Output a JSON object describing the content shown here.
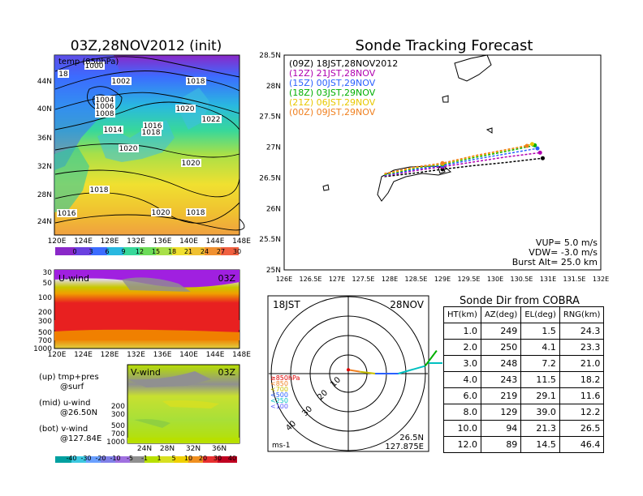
{
  "map_panel": {
    "title": "03Z,28NOV2012 (init)",
    "subtitle": "temp (850hPa)",
    "lat_labels": [
      "44N",
      "40N",
      "36N",
      "32N",
      "28N",
      "24N"
    ],
    "lon_labels": [
      "120E",
      "124E",
      "128E",
      "132E",
      "136E",
      "140E",
      "144E",
      "148E"
    ],
    "isobar_labels": [
      {
        "text": "1000"
      },
      {
        "text": "18"
      },
      {
        "text": "1002"
      },
      {
        "text": "1004"
      },
      {
        "text": "1006"
      },
      {
        "text": "1008"
      },
      {
        "text": "1018"
      },
      {
        "text": "1020"
      },
      {
        "text": "1022"
      },
      {
        "text": "1016"
      },
      {
        "text": "1014"
      },
      {
        "text": "1018"
      },
      {
        "text": "1020"
      },
      {
        "text": "1020"
      },
      {
        "text": "1018"
      },
      {
        "text": "1016"
      },
      {
        "text": "1020"
      },
      {
        "text": "1018"
      }
    ],
    "colorbar": [
      "0",
      "3",
      "6",
      "9",
      "12",
      "15",
      "18",
      "21",
      "24",
      "27",
      "30"
    ]
  },
  "u_panel": {
    "title": "U-wind",
    "time": "03Z",
    "y_labels": [
      "30",
      "50",
      "100",
      "200",
      "300",
      "500",
      "700",
      "1000"
    ],
    "x_labels": [
      "120E",
      "124E",
      "128E",
      "132E",
      "136E",
      "140E",
      "144E",
      "148E"
    ]
  },
  "v_panel": {
    "title": "V-wind",
    "time": "03Z",
    "y_labels": [
      "200",
      "300",
      "500",
      "700",
      "1000"
    ],
    "x_labels": [
      "24N",
      "28N",
      "32N",
      "36N"
    ],
    "colorbar": [
      "-40",
      "-30",
      "-20",
      "-10",
      "-5",
      "-1",
      "1",
      "5",
      "10",
      "20",
      "30",
      "40"
    ]
  },
  "legend_notes": [
    {
      "line1": "(up) tmp+pres",
      "line2": "@surf"
    },
    {
      "line1": "(mid) u-wind",
      "line2": "@26.50N"
    },
    {
      "line1": "(bot) v-wind",
      "line2": "@127.84E"
    }
  ],
  "tracking": {
    "title": "Sonde Tracking Forecast",
    "series_labels": [
      {
        "text": "(09Z) 18JST,28NOV2012",
        "color": "#000000"
      },
      {
        "text": "(12Z) 21JST,28NOV",
        "color": "#b000b0"
      },
      {
        "text": "(15Z) 00JST,29NOV",
        "color": "#2a60ff"
      },
      {
        "text": "(18Z) 03JST,29NOV",
        "color": "#00b000"
      },
      {
        "text": "(21Z) 06JST,29NOV",
        "color": "#e8c800"
      },
      {
        "text": "(00Z) 09JST,29NOV",
        "color": "#f08020"
      }
    ],
    "params": [
      "VUP= 5.0 m/s",
      "VDW= -3.0 m/s",
      "Burst Alt= 25.0 km"
    ],
    "y_ticks": [
      "28.5N",
      "28N",
      "27.5N",
      "27N",
      "26.5N",
      "26N",
      "25.5N",
      "25N"
    ],
    "x_ticks": [
      "126E",
      "126.5E",
      "127E",
      "127.5E",
      "128E",
      "128.5E",
      "129E",
      "129.5E",
      "130E",
      "130.5E",
      "131E",
      "131.5E",
      "132E"
    ]
  },
  "polar": {
    "label_left": "18JST",
    "label_right": "28NOV",
    "ring_labels": [
      "10",
      "20",
      "30",
      "40"
    ],
    "levels": [
      "≥850hPa",
      "<850",
      "<700",
      "<500",
      "<250",
      "<100"
    ],
    "level_colors": [
      "#e00000",
      "#f08020",
      "#c8c000",
      "#2a60ff",
      "#00c0c0",
      "#5a5aff"
    ],
    "unit": "ms-1",
    "loc_lat": "26.5N",
    "loc_lon": "127.875E"
  },
  "sonde_dir": {
    "title": "Sonde Dir from COBRA",
    "headers": [
      "HT(km)",
      "AZ(deg)",
      "EL(deg)",
      "RNG(km)"
    ],
    "rows": [
      [
        "1.0",
        "249",
        "1.5",
        "24.3"
      ],
      [
        "2.0",
        "250",
        "4.1",
        "23.3"
      ],
      [
        "3.0",
        "248",
        "7.2",
        "21.0"
      ],
      [
        "4.0",
        "243",
        "11.5",
        "18.2"
      ],
      [
        "6.0",
        "219",
        "29.1",
        "11.6"
      ],
      [
        "8.0",
        "129",
        "39.0",
        "12.2"
      ],
      [
        "10.0",
        "94",
        "21.3",
        "26.5"
      ],
      [
        "12.0",
        "89",
        "14.5",
        "46.4"
      ]
    ]
  },
  "chart_data": [
    {
      "type": "line",
      "title": "Sonde Tracking Forecast",
      "xlim": [
        126,
        132
      ],
      "ylim": [
        25,
        28.5
      ],
      "series": [
        {
          "name": "(09Z) 18JST,28NOV2012",
          "color": "#000000",
          "x": [
            127.9,
            128.5,
            129.0,
            129.6,
            130.2,
            130.9
          ],
          "y": [
            26.52,
            26.58,
            26.64,
            26.7,
            26.75,
            26.82
          ]
        },
        {
          "name": "(12Z) 21JST,28NOV",
          "color": "#b000b0",
          "x": [
            127.9,
            128.5,
            129.0,
            129.6,
            130.2,
            130.85
          ],
          "y": [
            26.53,
            26.62,
            26.68,
            26.76,
            26.84,
            26.91
          ]
        },
        {
          "name": "(15Z) 00JST,29NOV",
          "color": "#2a60ff",
          "x": [
            127.9,
            128.5,
            129.0,
            129.6,
            130.2,
            130.8
          ],
          "y": [
            26.54,
            26.64,
            26.7,
            26.8,
            26.89,
            26.98
          ]
        },
        {
          "name": "(18Z) 03JST,29NOV",
          "color": "#00b000",
          "x": [
            127.9,
            128.5,
            129.0,
            129.6,
            130.2,
            130.75
          ],
          "y": [
            26.55,
            26.66,
            26.72,
            26.83,
            26.93,
            27.03
          ]
        },
        {
          "name": "(21Z) 06JST,29NOV",
          "color": "#e8c800",
          "x": [
            127.9,
            128.5,
            129.0,
            129.6,
            130.2,
            130.7
          ],
          "y": [
            26.56,
            26.67,
            26.73,
            26.85,
            26.95,
            27.05
          ]
        },
        {
          "name": "(00Z) 09JST,29NOV",
          "color": "#f08020",
          "x": [
            127.9,
            128.5,
            129.0,
            129.6,
            130.2,
            130.6
          ],
          "y": [
            26.57,
            26.68,
            26.74,
            26.86,
            26.96,
            27.02
          ]
        }
      ]
    },
    {
      "type": "line",
      "title": "18JST 28NOV",
      "polar": true,
      "rings_ms": [
        10,
        20,
        30,
        40
      ],
      "hodograph_uv": [
        {
          "u": 0,
          "v": 2,
          "color": "#e00000"
        },
        {
          "u": 6,
          "v": 1,
          "color": "#f08020"
        },
        {
          "u": 14,
          "v": 0,
          "color": "#c8c000"
        },
        {
          "u": 26,
          "v": 0,
          "color": "#2a60ff"
        },
        {
          "u": 40,
          "v": 4,
          "color": "#00c0c0"
        },
        {
          "u": 46,
          "v": 12,
          "color": "#00b000"
        }
      ]
    },
    {
      "type": "table",
      "title": "Sonde Dir from COBRA",
      "columns": [
        "HT(km)",
        "AZ(deg)",
        "EL(deg)",
        "RNG(km)"
      ],
      "rows": [
        [
          1.0,
          249,
          1.5,
          24.3
        ],
        [
          2.0,
          250,
          4.1,
          23.3
        ],
        [
          3.0,
          248,
          7.2,
          21.0
        ],
        [
          4.0,
          243,
          11.5,
          18.2
        ],
        [
          6.0,
          219,
          29.1,
          11.6
        ],
        [
          8.0,
          129,
          39.0,
          12.2
        ],
        [
          10.0,
          94,
          21.3,
          26.5
        ],
        [
          12.0,
          89,
          14.5,
          46.4
        ]
      ]
    }
  ]
}
